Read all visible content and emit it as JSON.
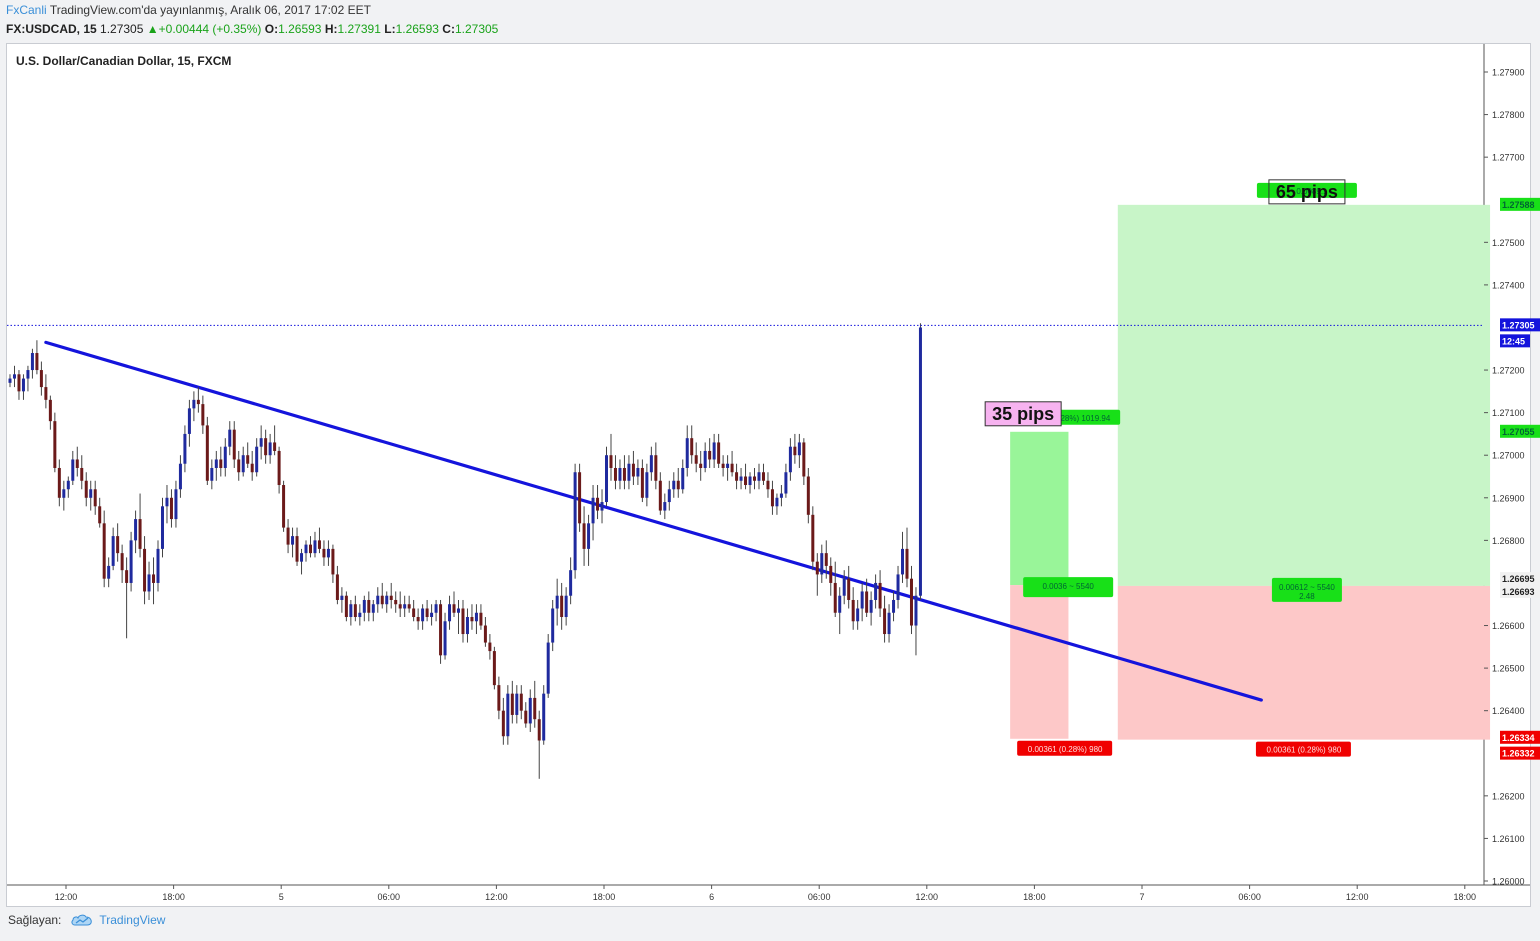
{
  "header": {
    "brand": "FxCanli",
    "published": "TradingView.com'da yayınlanmış, Aralık 06, 2017 17:02 EET",
    "symbol": "FX:USDCAD, 15",
    "last": "1.27305",
    "change": "+0.00444 (+0.35%)",
    "o_label": "O:",
    "o_value": "1.26593",
    "h_label": "H:",
    "h_value": "1.27391",
    "l_label": "L:",
    "l_value": "1.26593",
    "c_label": "C:",
    "c_value": "1.27305"
  },
  "footer": {
    "provided_by": "Sağlayan:",
    "tv_name": "TradingView"
  },
  "colors": {
    "up": "#1f2a9e",
    "down": "#6b1a1a",
    "trendline": "#1414dc",
    "profit_zone": "#c8f5c8",
    "profit_zone_inner": "#99f599",
    "loss_zone": "#fdc8c8",
    "green_badge": "#18e018",
    "red_badge": "#f00000",
    "last_price": "#1414dc"
  },
  "chart_data": {
    "type": "candlestick",
    "title": "U.S. Dollar/Canadian Dollar, 15, FXCM",
    "ylim": [
      1.2598,
      1.27985
    ],
    "y_ticks": [
      "1.27900",
      "1.27800",
      "1.27700",
      "1.27500",
      "1.27400",
      "1.27200",
      "1.27100",
      "1.27000",
      "1.26900",
      "1.26800",
      "1.26600",
      "1.26500",
      "1.26400",
      "1.26200",
      "1.26100",
      "1.26000"
    ],
    "x_tick_labels": [
      "12:00",
      "18:00",
      "5",
      "06:00",
      "12:00",
      "18:00",
      "6",
      "06:00",
      "12:00",
      "18:00",
      "7",
      "06:00",
      "12:00",
      "18:00"
    ],
    "price_labels": [
      {
        "text": "1.27588",
        "value": 1.27588,
        "style": "green"
      },
      {
        "text": "1.27305",
        "value": 1.27305,
        "style": "last"
      },
      {
        "text": "12:45",
        "value": 1.27305,
        "style": "countdown"
      },
      {
        "text": "1.27055",
        "value": 1.27055,
        "style": "green"
      },
      {
        "text": "1.26695",
        "value": 1.26695,
        "style": "gray"
      },
      {
        "text": "1.26693",
        "value": 1.26693,
        "style": "gray"
      },
      {
        "text": "1.26334",
        "value": 1.26334,
        "style": "red"
      },
      {
        "text": "1.26332",
        "value": 1.26332,
        "style": "red"
      }
    ],
    "last_price": 1.27305,
    "trendline": [
      {
        "bar": 8,
        "price": 1.27265
      },
      {
        "bar": 279,
        "price": 1.26425
      }
    ],
    "positions": [
      {
        "entry": 1.26695,
        "target": 1.27055,
        "stop": 1.26334,
        "from_bar": 223,
        "to_bar": 236,
        "target_label": "0.00360 (0.28%) 1019.94",
        "entry_label": "0.0036 ~ 5540",
        "stop_label": "0.00361 (0.28%) 980",
        "note": "35 pips"
      },
      {
        "entry": 1.26693,
        "target": 1.27588,
        "stop": 1.26332,
        "from_bar": 247,
        "to_bar": 330,
        "target_label": "0.0089...",
        "entry_label": "0.00612 ~ 5540",
        "entry_label2": "2.48",
        "stop_label": "0.00361 (0.28%) 980",
        "note": "65 pips"
      }
    ],
    "candles": [
      [
        1.2717,
        1.2719,
        1.2716,
        1.2718
      ],
      [
        1.2718,
        1.2721,
        1.2716,
        1.2719
      ],
      [
        1.2719,
        1.272,
        1.2713,
        1.2715
      ],
      [
        1.2715,
        1.2719,
        1.2713,
        1.2718
      ],
      [
        1.2718,
        1.2721,
        1.2715,
        1.272
      ],
      [
        1.272,
        1.2725,
        1.2718,
        1.2724
      ],
      [
        1.2724,
        1.2727,
        1.2719,
        1.272
      ],
      [
        1.272,
        1.2722,
        1.2714,
        1.2716
      ],
      [
        1.2716,
        1.2719,
        1.2711,
        1.2713
      ],
      [
        1.2713,
        1.2714,
        1.2706,
        1.2708
      ],
      [
        1.2708,
        1.271,
        1.2696,
        1.2697
      ],
      [
        1.2697,
        1.2699,
        1.2688,
        1.269
      ],
      [
        1.269,
        1.2694,
        1.2687,
        1.2692
      ],
      [
        1.2692,
        1.2695,
        1.269,
        1.2694
      ],
      [
        1.2694,
        1.2701,
        1.2693,
        1.2699
      ],
      [
        1.2699,
        1.2702,
        1.2695,
        1.2697
      ],
      [
        1.2697,
        1.27,
        1.2692,
        1.2694
      ],
      [
        1.2694,
        1.2696,
        1.2688,
        1.269
      ],
      [
        1.269,
        1.2694,
        1.2687,
        1.2692
      ],
      [
        1.2692,
        1.2694,
        1.2686,
        1.2688
      ],
      [
        1.2688,
        1.269,
        1.2683,
        1.2684
      ],
      [
        1.2684,
        1.2687,
        1.2669,
        1.2671
      ],
      [
        1.2671,
        1.2676,
        1.2669,
        1.2674
      ],
      [
        1.2674,
        1.2683,
        1.2673,
        1.2681
      ],
      [
        1.2681,
        1.2684,
        1.2675,
        1.2677
      ],
      [
        1.2677,
        1.2679,
        1.267,
        1.2673
      ],
      [
        1.2673,
        1.2676,
        1.2657,
        1.267
      ],
      [
        1.267,
        1.2682,
        1.2668,
        1.268
      ],
      [
        1.268,
        1.2687,
        1.2677,
        1.2685
      ],
      [
        1.2685,
        1.2691,
        1.2676,
        1.2678
      ],
      [
        1.2678,
        1.2681,
        1.2665,
        1.2668
      ],
      [
        1.2668,
        1.2675,
        1.2666,
        1.2672
      ],
      [
        1.2672,
        1.2676,
        1.2665,
        1.267
      ],
      [
        1.267,
        1.268,
        1.2668,
        1.2678
      ],
      [
        1.2678,
        1.269,
        1.2676,
        1.2688
      ],
      [
        1.2688,
        1.2693,
        1.2684,
        1.269
      ],
      [
        1.269,
        1.2692,
        1.2683,
        1.2685
      ],
      [
        1.2685,
        1.2694,
        1.2683,
        1.2692
      ],
      [
        1.2692,
        1.27,
        1.269,
        1.2698
      ],
      [
        1.2698,
        1.2707,
        1.2696,
        1.2705
      ],
      [
        1.2705,
        1.2713,
        1.2702,
        1.2711
      ],
      [
        1.2711,
        1.2715,
        1.2708,
        1.2713
      ],
      [
        1.2713,
        1.2716,
        1.271,
        1.2712
      ],
      [
        1.2712,
        1.2714,
        1.2705,
        1.2707
      ],
      [
        1.2707,
        1.2709,
        1.2693,
        1.2694
      ],
      [
        1.2694,
        1.2699,
        1.2692,
        1.2697
      ],
      [
        1.2697,
        1.2701,
        1.2694,
        1.2699
      ],
      [
        1.2699,
        1.2702,
        1.2695,
        1.2697
      ],
      [
        1.2697,
        1.2704,
        1.2695,
        1.2702
      ],
      [
        1.2702,
        1.2708,
        1.27,
        1.2706
      ],
      [
        1.2706,
        1.2708,
        1.2697,
        1.2699
      ],
      [
        1.2699,
        1.2701,
        1.2694,
        1.2696
      ],
      [
        1.2696,
        1.2702,
        1.2695,
        1.27
      ],
      [
        1.27,
        1.2703,
        1.2697,
        1.2698
      ],
      [
        1.2698,
        1.2701,
        1.2694,
        1.2696
      ],
      [
        1.2696,
        1.2704,
        1.2695,
        1.2702
      ],
      [
        1.2702,
        1.2707,
        1.2699,
        1.2704
      ],
      [
        1.2704,
        1.2706,
        1.2698,
        1.27
      ],
      [
        1.27,
        1.2705,
        1.2698,
        1.2703
      ],
      [
        1.2703,
        1.2707,
        1.27,
        1.2701
      ],
      [
        1.2701,
        1.2702,
        1.2691,
        1.2693
      ],
      [
        1.2693,
        1.2694,
        1.2682,
        1.2683
      ],
      [
        1.2683,
        1.2685,
        1.2677,
        1.2679
      ],
      [
        1.2679,
        1.2683,
        1.2676,
        1.2681
      ],
      [
        1.2681,
        1.2683,
        1.2674,
        1.2675
      ],
      [
        1.2675,
        1.2678,
        1.2672,
        1.2677
      ],
      [
        1.2677,
        1.268,
        1.2675,
        1.2679
      ],
      [
        1.2679,
        1.2681,
        1.2676,
        1.2677
      ],
      [
        1.2677,
        1.2682,
        1.2676,
        1.268
      ],
      [
        1.268,
        1.2683,
        1.2677,
        1.2678
      ],
      [
        1.2678,
        1.268,
        1.2674,
        1.2676
      ],
      [
        1.2676,
        1.268,
        1.2674,
        1.2678
      ],
      [
        1.2678,
        1.2679,
        1.267,
        1.2672
      ],
      [
        1.2672,
        1.2674,
        1.2665,
        1.2666
      ],
      [
        1.2666,
        1.2669,
        1.2663,
        1.2667
      ],
      [
        1.2667,
        1.2668,
        1.2661,
        1.2662
      ],
      [
        1.2662,
        1.2666,
        1.266,
        1.2665
      ],
      [
        1.2665,
        1.2667,
        1.2661,
        1.2662
      ],
      [
        1.2662,
        1.2665,
        1.266,
        1.2663
      ],
      [
        1.2663,
        1.2667,
        1.2661,
        1.2666
      ],
      [
        1.2666,
        1.2668,
        1.2661,
        1.2663
      ],
      [
        1.2663,
        1.2666,
        1.2661,
        1.2665
      ],
      [
        1.2665,
        1.2669,
        1.2663,
        1.2667
      ],
      [
        1.2667,
        1.267,
        1.2664,
        1.2665
      ],
      [
        1.2665,
        1.2668,
        1.2663,
        1.2667
      ],
      [
        1.2667,
        1.267,
        1.2664,
        1.2666
      ],
      [
        1.2666,
        1.2668,
        1.2663,
        1.2665
      ],
      [
        1.2665,
        1.2668,
        1.2662,
        1.2664
      ],
      [
        1.2664,
        1.2667,
        1.2662,
        1.2665
      ],
      [
        1.2665,
        1.2667,
        1.2663,
        1.2664
      ],
      [
        1.2664,
        1.2666,
        1.2661,
        1.2662
      ],
      [
        1.2662,
        1.2664,
        1.2659,
        1.2661
      ],
      [
        1.2661,
        1.2665,
        1.2659,
        1.2664
      ],
      [
        1.2664,
        1.2666,
        1.2661,
        1.2662
      ],
      [
        1.2662,
        1.2665,
        1.266,
        1.2663
      ],
      [
        1.2663,
        1.2666,
        1.2661,
        1.2665
      ],
      [
        1.2665,
        1.2666,
        1.2651,
        1.2653
      ],
      [
        1.2653,
        1.2663,
        1.2652,
        1.2661
      ],
      [
        1.2661,
        1.2667,
        1.2659,
        1.2665
      ],
      [
        1.2665,
        1.2668,
        1.2662,
        1.2663
      ],
      [
        1.2663,
        1.2666,
        1.2658,
        1.2664
      ],
      [
        1.2664,
        1.2666,
        1.2656,
        1.2658
      ],
      [
        1.2658,
        1.2664,
        1.2656,
        1.2662
      ],
      [
        1.2662,
        1.2665,
        1.2659,
        1.2661
      ],
      [
        1.2661,
        1.2665,
        1.2658,
        1.2663
      ],
      [
        1.2663,
        1.2665,
        1.2659,
        1.266
      ],
      [
        1.266,
        1.2662,
        1.2655,
        1.2656
      ],
      [
        1.2656,
        1.2658,
        1.2652,
        1.2654
      ],
      [
        1.2654,
        1.2655,
        1.2645,
        1.2646
      ],
      [
        1.2646,
        1.2648,
        1.2638,
        1.264
      ],
      [
        1.264,
        1.2643,
        1.2632,
        1.2634
      ],
      [
        1.2634,
        1.2646,
        1.2632,
        1.2644
      ],
      [
        1.2644,
        1.2647,
        1.2637,
        1.2639
      ],
      [
        1.2639,
        1.2646,
        1.2637,
        1.2644
      ],
      [
        1.2644,
        1.2646,
        1.2638,
        1.264
      ],
      [
        1.264,
        1.2642,
        1.2636,
        1.2637
      ],
      [
        1.2637,
        1.2645,
        1.2635,
        1.2643
      ],
      [
        1.2643,
        1.2647,
        1.2636,
        1.2638
      ],
      [
        1.2638,
        1.264,
        1.2624,
        1.2633
      ],
      [
        1.2633,
        1.2646,
        1.2632,
        1.2644
      ],
      [
        1.2644,
        1.2658,
        1.2643,
        1.2656
      ],
      [
        1.2656,
        1.2666,
        1.2654,
        1.2664
      ],
      [
        1.2664,
        1.2671,
        1.266,
        1.2667
      ],
      [
        1.2667,
        1.267,
        1.2659,
        1.2662
      ],
      [
        1.2662,
        1.2669,
        1.266,
        1.2667
      ],
      [
        1.2667,
        1.2676,
        1.2665,
        1.2673
      ],
      [
        1.2673,
        1.2698,
        1.2671,
        1.2696
      ],
      [
        1.2696,
        1.2698,
        1.2682,
        1.2684
      ],
      [
        1.2684,
        1.2688,
        1.2674,
        1.2678
      ],
      [
        1.2678,
        1.2686,
        1.2674,
        1.2684
      ],
      [
        1.2684,
        1.2693,
        1.268,
        1.269
      ],
      [
        1.269,
        1.2693,
        1.2685,
        1.2687
      ],
      [
        1.2687,
        1.2692,
        1.2684,
        1.2689
      ],
      [
        1.2689,
        1.2702,
        1.2688,
        1.27
      ],
      [
        1.27,
        1.2705,
        1.2694,
        1.2697
      ],
      [
        1.2697,
        1.27,
        1.2692,
        1.2694
      ],
      [
        1.2694,
        1.2699,
        1.2692,
        1.2697
      ],
      [
        1.2697,
        1.27,
        1.2692,
        1.2694
      ],
      [
        1.2694,
        1.27,
        1.2692,
        1.2698
      ],
      [
        1.2698,
        1.2701,
        1.2693,
        1.2695
      ],
      [
        1.2695,
        1.2699,
        1.2693,
        1.2697
      ],
      [
        1.2697,
        1.2699,
        1.2689,
        1.269
      ],
      [
        1.269,
        1.2698,
        1.2688,
        1.2696
      ],
      [
        1.2696,
        1.2702,
        1.2694,
        1.27
      ],
      [
        1.27,
        1.2703,
        1.2692,
        1.2694
      ],
      [
        1.2694,
        1.2696,
        1.2686,
        1.2687
      ],
      [
        1.2687,
        1.2691,
        1.2685,
        1.2689
      ],
      [
        1.2689,
        1.2694,
        1.2687,
        1.2692
      ],
      [
        1.2692,
        1.2696,
        1.269,
        1.2694
      ],
      [
        1.2694,
        1.2697,
        1.269,
        1.2692
      ],
      [
        1.2692,
        1.2699,
        1.2691,
        1.2697
      ],
      [
        1.2697,
        1.2707,
        1.2695,
        1.2704
      ],
      [
        1.2704,
        1.2707,
        1.2698,
        1.27
      ],
      [
        1.27,
        1.2703,
        1.2696,
        1.2698
      ],
      [
        1.2698,
        1.2701,
        1.2694,
        1.2697
      ],
      [
        1.2697,
        1.2703,
        1.2696,
        1.2701
      ],
      [
        1.2701,
        1.2704,
        1.2697,
        1.2699
      ],
      [
        1.2699,
        1.2705,
        1.2697,
        1.2703
      ],
      [
        1.2703,
        1.2705,
        1.2697,
        1.2698
      ],
      [
        1.2698,
        1.27,
        1.2695,
        1.2697
      ],
      [
        1.2697,
        1.27,
        1.2694,
        1.2698
      ],
      [
        1.2698,
        1.2701,
        1.2695,
        1.2696
      ],
      [
        1.2696,
        1.2698,
        1.2692,
        1.2694
      ],
      [
        1.2694,
        1.2697,
        1.2692,
        1.2695
      ],
      [
        1.2695,
        1.2698,
        1.2692,
        1.2693
      ],
      [
        1.2693,
        1.2696,
        1.2691,
        1.2695
      ],
      [
        1.2695,
        1.2697,
        1.2692,
        1.2694
      ],
      [
        1.2694,
        1.2698,
        1.2692,
        1.2696
      ],
      [
        1.2696,
        1.2698,
        1.2693,
        1.2694
      ],
      [
        1.2694,
        1.2696,
        1.269,
        1.2692
      ],
      [
        1.2692,
        1.2694,
        1.2686,
        1.2688
      ],
      [
        1.2688,
        1.2691,
        1.2686,
        1.269
      ],
      [
        1.269,
        1.2693,
        1.2688,
        1.2691
      ],
      [
        1.2691,
        1.2698,
        1.269,
        1.2696
      ],
      [
        1.2696,
        1.2704,
        1.2694,
        1.2702
      ],
      [
        1.2702,
        1.2705,
        1.2698,
        1.27
      ],
      [
        1.27,
        1.2705,
        1.2697,
        1.2703
      ],
      [
        1.2703,
        1.2704,
        1.2693,
        1.2695
      ],
      [
        1.2695,
        1.2697,
        1.2684,
        1.2686
      ],
      [
        1.2686,
        1.2688,
        1.2673,
        1.2675
      ],
      [
        1.2675,
        1.2677,
        1.2667,
        1.2672
      ],
      [
        1.2672,
        1.2679,
        1.267,
        1.2677
      ],
      [
        1.2677,
        1.268,
        1.2671,
        1.2674
      ],
      [
        1.2674,
        1.2676,
        1.2667,
        1.267
      ],
      [
        1.267,
        1.2675,
        1.2662,
        1.2663
      ],
      [
        1.2663,
        1.2669,
        1.2658,
        1.2667
      ],
      [
        1.2667,
        1.2673,
        1.2665,
        1.2671
      ],
      [
        1.2671,
        1.2674,
        1.2664,
        1.2666
      ],
      [
        1.2666,
        1.2669,
        1.2659,
        1.2661
      ],
      [
        1.2661,
        1.2666,
        1.2659,
        1.2664
      ],
      [
        1.2664,
        1.267,
        1.2661,
        1.2668
      ],
      [
        1.2668,
        1.2671,
        1.2662,
        1.2663
      ],
      [
        1.2663,
        1.2668,
        1.266,
        1.2666
      ],
      [
        1.2666,
        1.2672,
        1.2664,
        1.267
      ],
      [
        1.267,
        1.2673,
        1.2662,
        1.2664
      ],
      [
        1.2664,
        1.2667,
        1.2656,
        1.2658
      ],
      [
        1.2658,
        1.2665,
        1.2656,
        1.2663
      ],
      [
        1.2663,
        1.2668,
        1.2661,
        1.2666
      ],
      [
        1.2666,
        1.2674,
        1.2664,
        1.2672
      ],
      [
        1.2672,
        1.2682,
        1.267,
        1.2678
      ],
      [
        1.2678,
        1.2683,
        1.2669,
        1.2671
      ],
      [
        1.2671,
        1.2674,
        1.2658,
        1.266
      ],
      [
        1.266,
        1.2669,
        1.2653,
        1.2667
      ],
      [
        1.2667,
        1.2731,
        1.2666,
        1.273
      ]
    ]
  }
}
